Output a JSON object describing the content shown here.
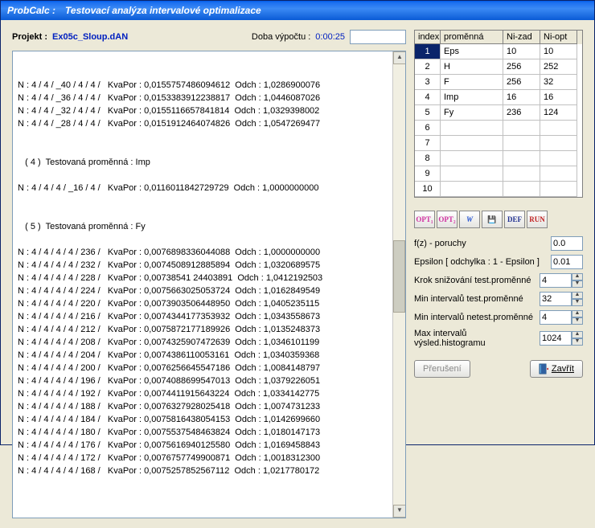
{
  "window": {
    "app": "ProbCalc :",
    "title": "Testovací analýza intervalové optimalizace"
  },
  "project": {
    "label": "Projekt :",
    "name": "Ex05c_Sloup.dAN",
    "time_label": "Doba výpočtu :",
    "time": "0:00:25"
  },
  "log_lines": [
    "N : 4 / 4 / _40 / 4 / 4 /   KvaPor : 0,0155757486094612  Odch : 1,0286900076",
    "N : 4 / 4 / _36 / 4 / 4 /   KvaPor : 0,0153383912238817  Odch : 1,0446087026",
    "N : 4 / 4 / _32 / 4 / 4 /   KvaPor : 0,0155116657841814  Odch : 1,0329398002",
    "N : 4 / 4 / _28 / 4 / 4 /   KvaPor : 0,0151912464074826  Odch : 1,0547269477",
    "",
    "",
    "   ( 4 )  Testovaná proměnná : Imp",
    "",
    "N : 4 / 4 / 4 / _16 / 4 /   KvaPor : 0,0116011842729729  Odch : 1,0000000000",
    "",
    "",
    "   ( 5 )  Testovaná proměnná : Fy",
    "",
    "N : 4 / 4 / 4 / 4 / 236 /   KvaPor : 0,0076898336044088  Odch : 1,0000000000",
    "N : 4 / 4 / 4 / 4 / 232 /   KvaPor : 0,0074508912885894  Odch : 1,0320689575",
    "N : 4 / 4 / 4 / 4 / 228 /   KvaPor : 0,00738541 24403891  Odch : 1,0412192503",
    "N : 4 / 4 / 4 / 4 / 224 /   KvaPor : 0,0075663025053724  Odch : 1,0162849549",
    "N : 4 / 4 / 4 / 4 / 220 /   KvaPor : 0,0073903506448950  Odch : 1,0405235115",
    "N : 4 / 4 / 4 / 4 / 216 /   KvaPor : 0,0074344177353932  Odch : 1,0343558673",
    "N : 4 / 4 / 4 / 4 / 212 /   KvaPor : 0,0075872177189926  Odch : 1,0135248373",
    "N : 4 / 4 / 4 / 4 / 208 /   KvaPor : 0,0074325907472639  Odch : 1,0346101199",
    "N : 4 / 4 / 4 / 4 / 204 /   KvaPor : 0,0074386110053161  Odch : 1,0340359368",
    "N : 4 / 4 / 4 / 4 / 200 /   KvaPor : 0,0076256645547186  Odch : 1,0084148797",
    "N : 4 / 4 / 4 / 4 / 196 /   KvaPor : 0,0074088699547013  Odch : 1,0379226051",
    "N : 4 / 4 / 4 / 4 / 192 /   KvaPor : 0,0074411915643224  Odch : 1,0334142775",
    "N : 4 / 4 / 4 / 4 / 188 /   KvaPor : 0,0076327928025418  Odch : 1,0074731233",
    "N : 4 / 4 / 4 / 4 / 184 /   KvaPor : 0,0075816438054153  Odch : 1,0142699660",
    "N : 4 / 4 / 4 / 4 / 180 /   KvaPor : 0,0075537548463824  Odch : 1,0180147173",
    "N : 4 / 4 / 4 / 4 / 176 /   KvaPor : 0,0075616940125580  Odch : 1,0169458843",
    "N : 4 / 4 / 4 / 4 / 172 /   KvaPor : 0,0076757749900871  Odch : 1,0018312300",
    "N : 4 / 4 / 4 / 4 / 168 /   KvaPor : 0,0075257852567112  Odch : 1,0217780172"
  ],
  "table": {
    "headers": {
      "idx": "index",
      "var": "proměnná",
      "n1": "Ni-zad",
      "n2": "Ni-opt"
    },
    "rows": [
      {
        "idx": "1",
        "var": "Eps",
        "n1": "10",
        "n2": "10",
        "selected": true
      },
      {
        "idx": "2",
        "var": "H",
        "n1": "256",
        "n2": "252"
      },
      {
        "idx": "3",
        "var": "F",
        "n1": "256",
        "n2": "32"
      },
      {
        "idx": "4",
        "var": "Imp",
        "n1": "16",
        "n2": "16"
      },
      {
        "idx": "5",
        "var": "Fy",
        "n1": "236",
        "n2": "124"
      },
      {
        "idx": "6",
        "var": "",
        "n1": "",
        "n2": ""
      },
      {
        "idx": "7",
        "var": "",
        "n1": "",
        "n2": ""
      },
      {
        "idx": "8",
        "var": "",
        "n1": "",
        "n2": ""
      },
      {
        "idx": "9",
        "var": "",
        "n1": "",
        "n2": ""
      },
      {
        "idx": "10",
        "var": "",
        "n1": "",
        "n2": ""
      }
    ]
  },
  "toolbar": {
    "b1": "OPT₁",
    "b2": "OPT₂",
    "b3": "W",
    "b4": "💾",
    "b5": "DEF",
    "b6": "RUN"
  },
  "form": {
    "fz_label": "f(z) - poruchy",
    "fz": "0.0",
    "eps_label": "Epsilon [ odchylka : 1 - Epsilon ]",
    "eps": "0.01",
    "krok_label": "Krok snižování test.proměnné",
    "krok": "4",
    "mintest_label": "Min  intervalů test.proměnné",
    "mintest": "32",
    "minnet_label": "Min  intervalů netest.proměnné",
    "minnet": "4",
    "maxhist_label": "Max intervalů výsled.histogramu",
    "maxhist": "1024"
  },
  "buttons": {
    "interrupt": "Přerušení",
    "close": "Zavřít"
  }
}
